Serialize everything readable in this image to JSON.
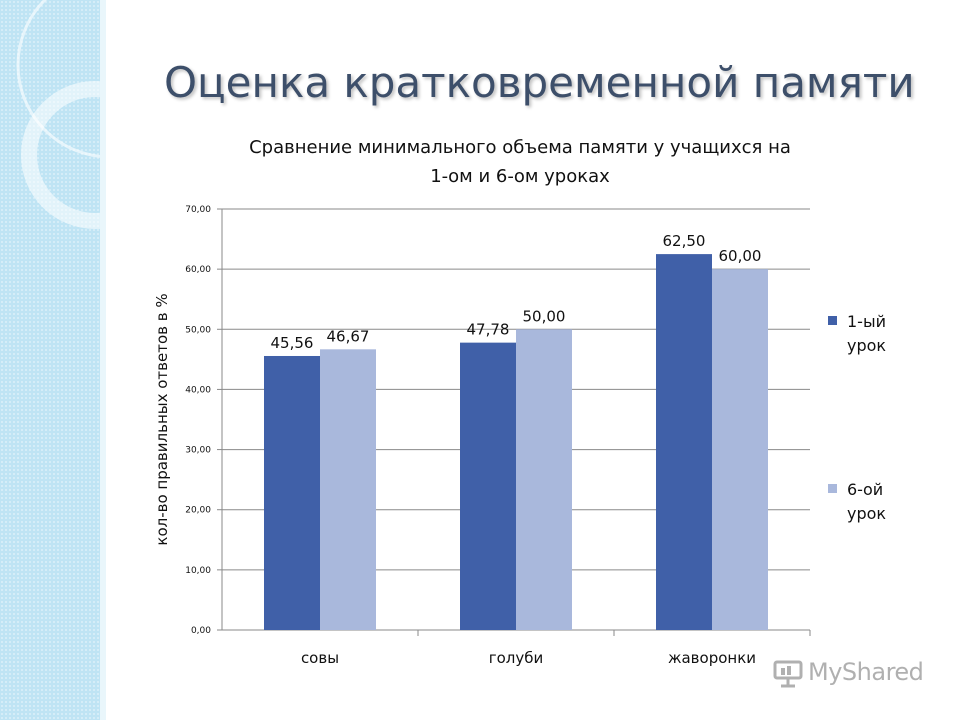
{
  "slide": {
    "title": "Оценка кратковременной памяти"
  },
  "chart_data": {
    "type": "bar",
    "title_line1": "Сравнение минимального объема памяти у учащихся на",
    "title_line2": "1-ом и 6-ом уроках",
    "ylabel": "кол-во правильных ответов в %",
    "xlabel": "",
    "ylim": [
      0,
      70
    ],
    "yticks": [
      "0,00",
      "10,00",
      "20,00",
      "30,00",
      "40,00",
      "50,00",
      "60,00",
      "70,00"
    ],
    "grid": true,
    "legend_position": "right",
    "categories": [
      "совы",
      "голуби",
      "жаворонки"
    ],
    "series": [
      {
        "name": "1-ый урок",
        "color": "#4060a8",
        "values": [
          45.56,
          47.78,
          62.5
        ],
        "labels": [
          "45,56",
          "47,78",
          "62,50"
        ]
      },
      {
        "name": "6-ой урок",
        "color": "#a9b8dc",
        "values": [
          46.67,
          50.0,
          60.0
        ],
        "labels": [
          "46,67",
          "50,00",
          "60,00"
        ]
      }
    ],
    "legend": [
      {
        "line1": "1-ый",
        "line2": "урок"
      },
      {
        "line1": "6-ой",
        "line2": "урок"
      }
    ]
  },
  "watermark": {
    "text": "MyShared",
    "icon": "presentation-board-icon"
  }
}
